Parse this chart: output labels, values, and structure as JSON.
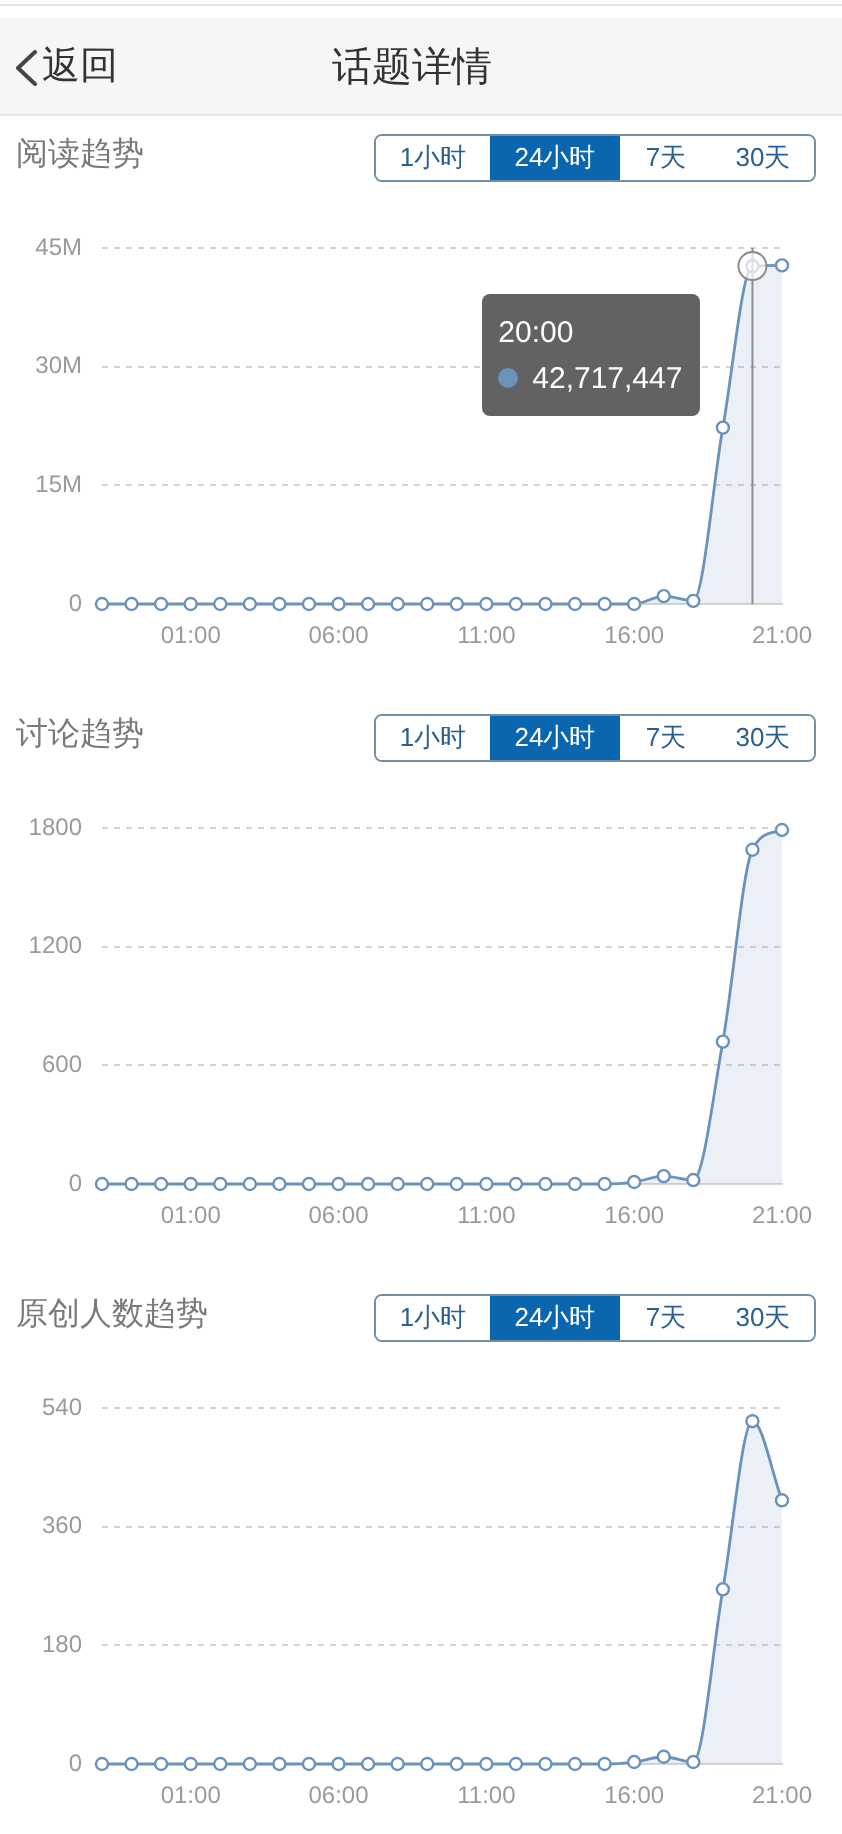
{
  "chart_data": [
    {
      "type": "area",
      "title": "阅读趋势",
      "x": [
        -2,
        -1,
        0,
        1,
        2,
        3,
        4,
        5,
        6,
        7,
        8,
        9,
        10,
        11,
        12,
        13,
        14,
        15,
        16,
        17,
        18,
        19,
        20,
        21
      ],
      "values": [
        0,
        0,
        0,
        0,
        0,
        0,
        0,
        0,
        0,
        0,
        0,
        0,
        0,
        0,
        0,
        0,
        0,
        0,
        0,
        1000000,
        400000,
        22300000,
        42717447,
        42800000
      ],
      "color": "#6a92bb",
      "xlim": [
        -2,
        21
      ],
      "xticks": [
        {
          "value": 1,
          "label": "01:00"
        },
        {
          "value": 6,
          "label": "06:00"
        },
        {
          "value": 11,
          "label": "11:00"
        },
        {
          "value": 16,
          "label": "16:00"
        },
        {
          "value": 21,
          "label": "21:00"
        }
      ],
      "ylim": [
        0,
        45000000
      ],
      "yticks": [
        0,
        {
          "value": 15000000,
          "label": "15M"
        },
        {
          "value": 30000000,
          "label": "30M"
        },
        {
          "value": 45000000,
          "label": "45M"
        }
      ],
      "grid": "y",
      "marker": "circle",
      "line_style": "solid",
      "ref_lines": [
        {
          "axis": "x",
          "value": 20,
          "color": "#8c8c8c"
        }
      ],
      "annotations": [
        "返回",
        "话题详情",
        "1小时",
        "24小时",
        "7天",
        "30天",
        {
          "text": "20:00\n42,717,447",
          "x": 20,
          "y": 42717447
        }
      ]
    },
    {
      "type": "area",
      "title": "讨论趋势",
      "x": [
        -2,
        -1,
        0,
        1,
        2,
        3,
        4,
        5,
        6,
        7,
        8,
        9,
        10,
        11,
        12,
        13,
        14,
        15,
        16,
        17,
        18,
        19,
        20,
        21
      ],
      "values": [
        0,
        0,
        0,
        0,
        0,
        0,
        0,
        0,
        0,
        0,
        0,
        0,
        0,
        0,
        0,
        0,
        0,
        0,
        10,
        40,
        20,
        720,
        1690,
        1790
      ],
      "color": "#6a92bb",
      "xlim": [
        -2,
        21
      ],
      "xticks": [
        {
          "value": 1,
          "label": "01:00"
        },
        {
          "value": 6,
          "label": "06:00"
        },
        {
          "value": 11,
          "label": "11:00"
        },
        {
          "value": 16,
          "label": "16:00"
        },
        {
          "value": 21,
          "label": "21:00"
        }
      ],
      "ylim": [
        0,
        1800
      ],
      "yticks": [
        0,
        600,
        1200,
        1800
      ],
      "grid": "y",
      "marker": "circle",
      "line_style": "solid",
      "annotations": [
        "1小时",
        "24小时",
        "7天",
        "30天"
      ]
    },
    {
      "type": "area",
      "title": "原创人数趋势",
      "x": [
        -2,
        -1,
        0,
        1,
        2,
        3,
        4,
        5,
        6,
        7,
        8,
        9,
        10,
        11,
        12,
        13,
        14,
        15,
        16,
        17,
        18,
        19,
        20,
        21
      ],
      "values": [
        0,
        0,
        0,
        0,
        0,
        0,
        0,
        0,
        0,
        0,
        0,
        0,
        0,
        0,
        0,
        0,
        0,
        0,
        3,
        11,
        3,
        265,
        520,
        400
      ],
      "color": "#6a92bb",
      "xlim": [
        -2,
        21
      ],
      "xticks": [
        {
          "value": 1,
          "label": "01:00"
        },
        {
          "value": 6,
          "label": "06:00"
        },
        {
          "value": 11,
          "label": "11:00"
        },
        {
          "value": 16,
          "label": "16:00"
        },
        {
          "value": 21,
          "label": "21:00"
        }
      ],
      "ylim": [
        0,
        540
      ],
      "yticks": [
        0,
        180,
        360,
        540
      ],
      "grid": "y",
      "marker": "circle",
      "line_style": "solid",
      "annotations": [
        "1小时",
        "24小时",
        "7天",
        "30天"
      ]
    }
  ]
}
